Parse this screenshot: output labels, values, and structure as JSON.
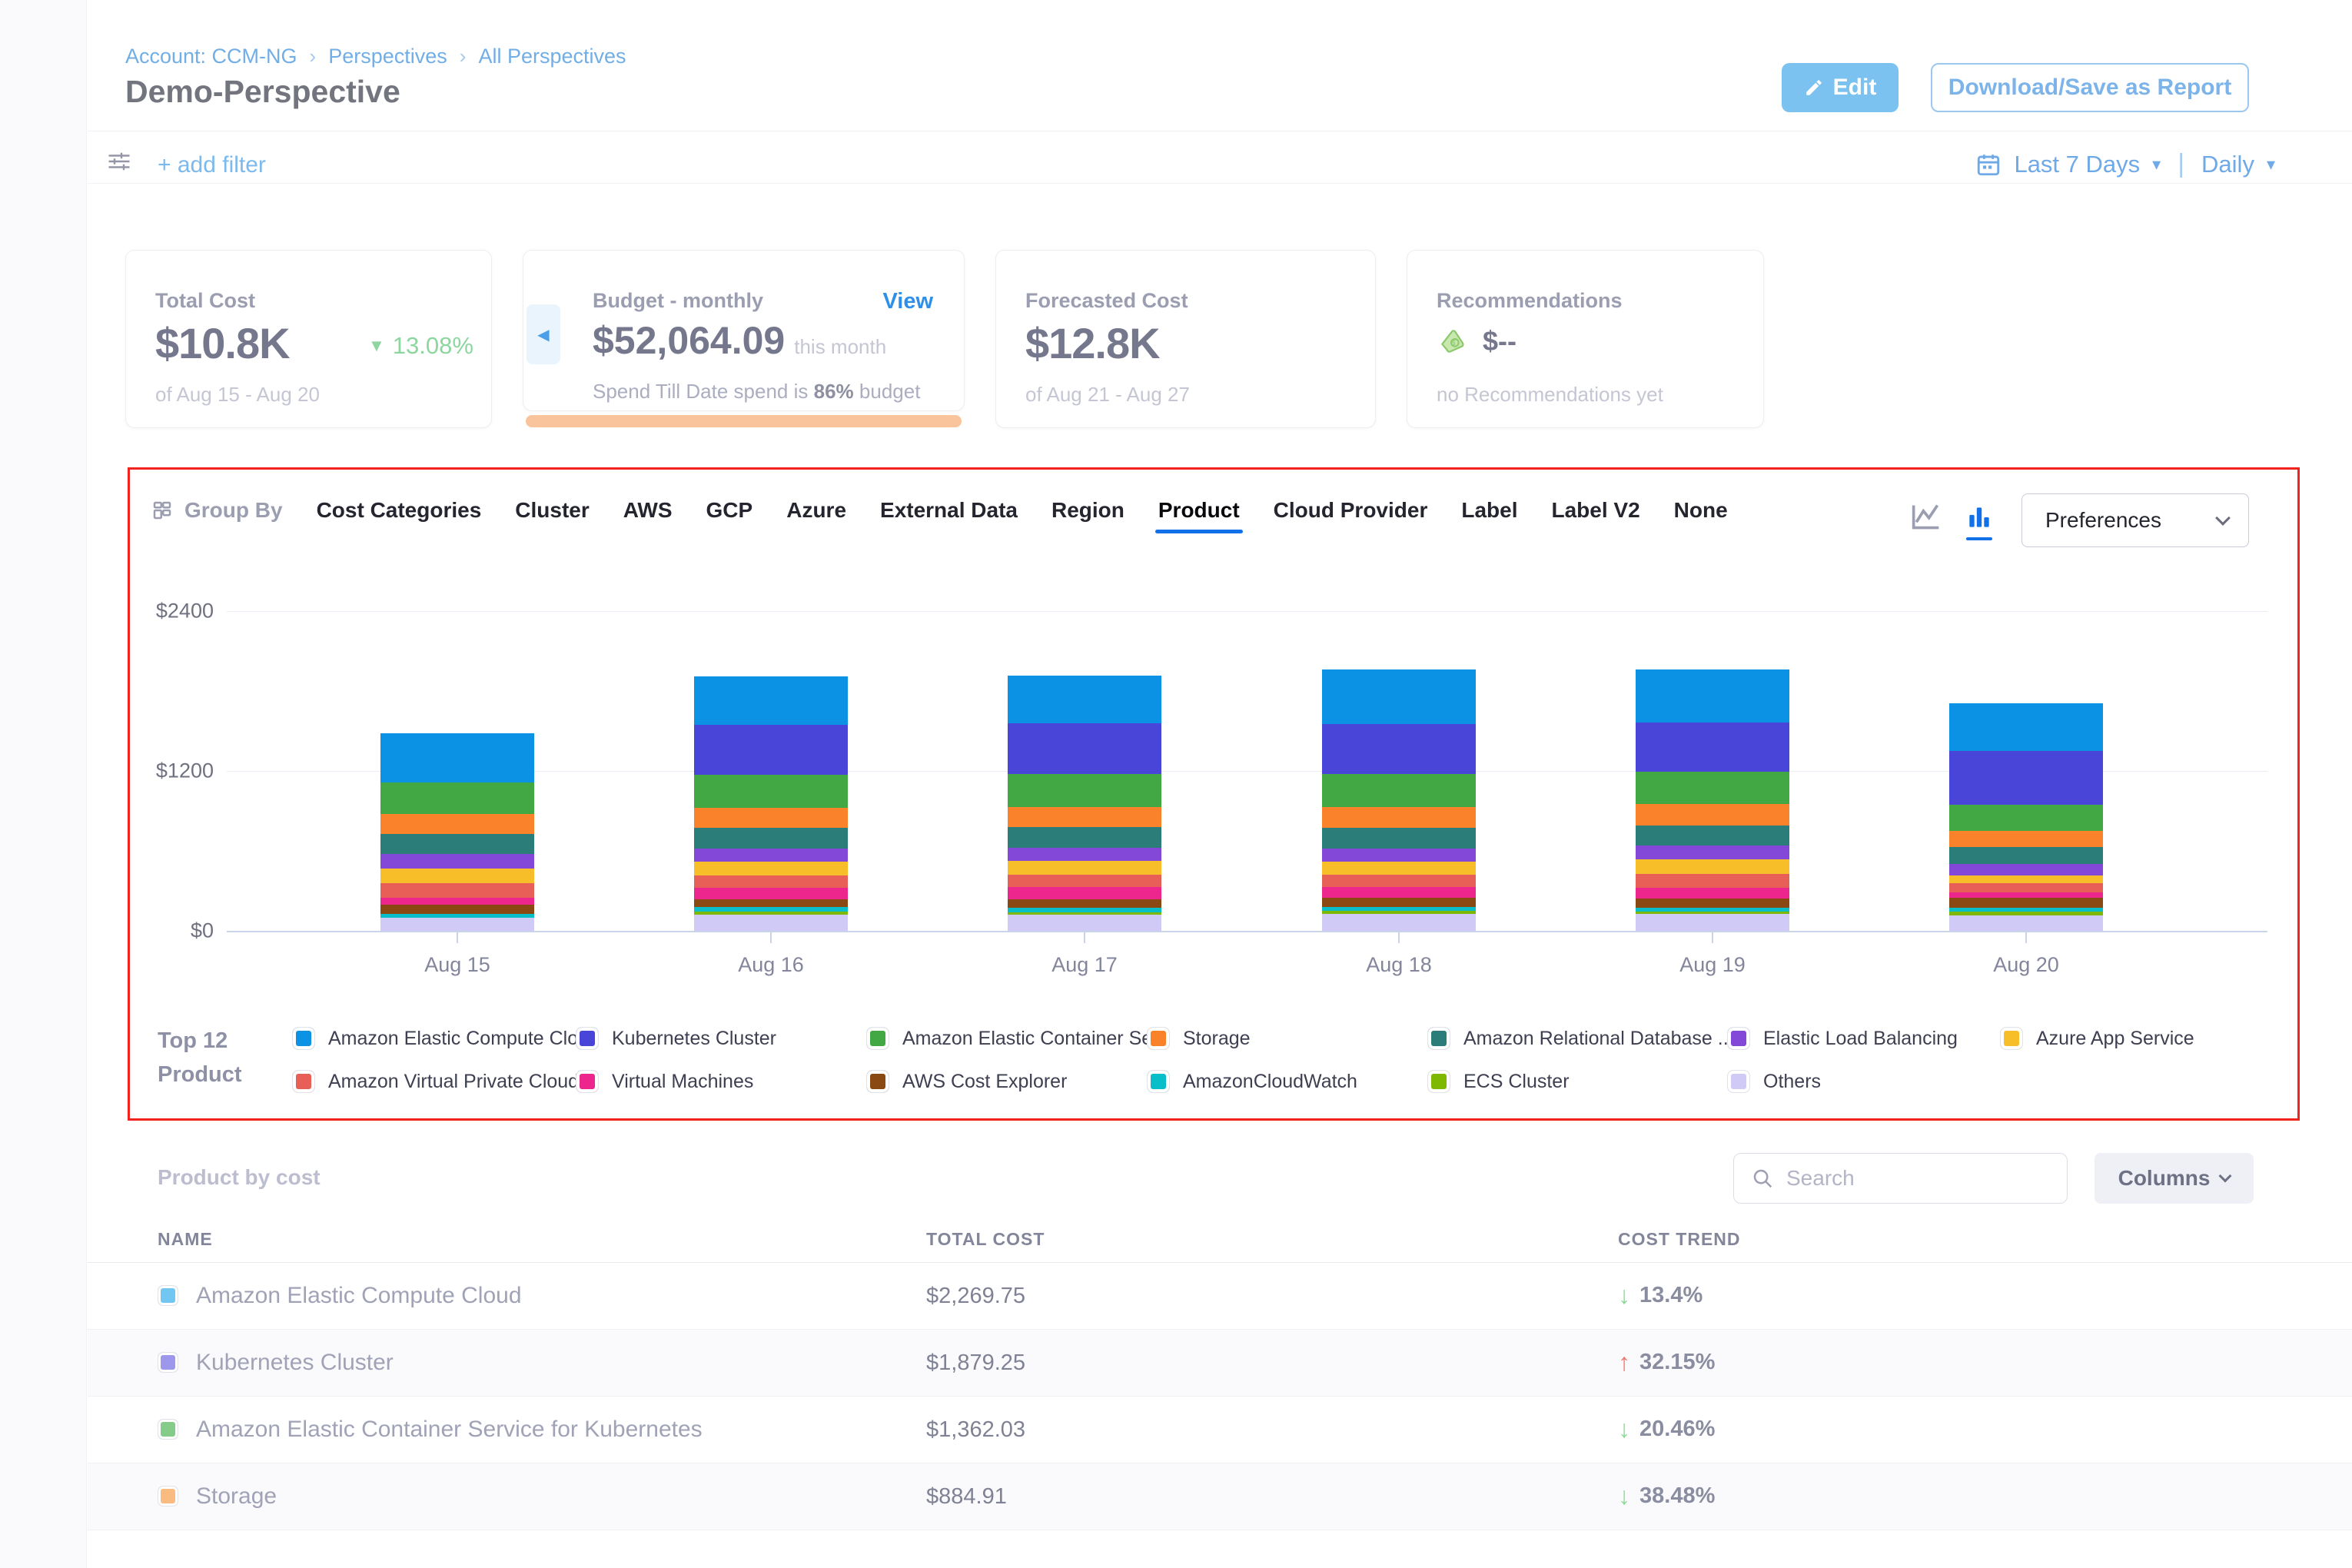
{
  "header": {
    "breadcrumb": {
      "account": "Account: CCM-NG",
      "perspectives": "Perspectives",
      "all_perspectives": "All Perspectives",
      "separator": "›"
    },
    "title": "Demo-Perspective",
    "edit_label": "Edit",
    "download_label": "Download/Save as Report"
  },
  "filter_bar": {
    "add_filter_label": "+ add filter",
    "date_range_label": "Last 7 Days",
    "granularity_label": "Daily"
  },
  "cards": {
    "total_cost": {
      "label": "Total Cost",
      "value": "$10.8K",
      "delta": "13.08%",
      "delta_direction": "down",
      "delta_color": "#8ed6a0",
      "period": "of Aug 15 - Aug 20"
    },
    "budget": {
      "label": "Budget - monthly",
      "view_label": "View",
      "value": "$52,064.09",
      "suffix": "this month",
      "spend_prefix": "Spend Till Date spend is",
      "spend_pct": "86%",
      "spend_suffix": "budget",
      "progress_color": "#f9c49b"
    },
    "forecasted": {
      "label": "Forecasted Cost",
      "value": "$12.8K",
      "period": "of Aug 21 - Aug 27"
    },
    "recommendations": {
      "label": "Recommendations",
      "value": "$--",
      "note": "no Recommendations yet",
      "icon_color": "#a8d98a"
    }
  },
  "group_by": {
    "label": "Group By",
    "tabs": [
      "Cost Categories",
      "Cluster",
      "AWS",
      "GCP",
      "Azure",
      "External Data",
      "Region",
      "Product",
      "Cloud Provider",
      "Label",
      "Label V2",
      "None"
    ],
    "active_tab": "Product",
    "active_underline_color": "#1271e8"
  },
  "preferences_label": "Preferences",
  "chart_data": {
    "type": "bar",
    "stacked": true,
    "x": [
      "Aug 15",
      "Aug 16",
      "Aug 17",
      "Aug 18",
      "Aug 19",
      "Aug 20"
    ],
    "ylim": [
      0,
      2400
    ],
    "ytick_labels": [
      "$2400",
      "$1200",
      "$0"
    ],
    "grid": "horizontal",
    "legend_position": "bottom",
    "series_bottom_to_top": [
      {
        "name": "Others",
        "color": "#cfcaf6",
        "values": [
          100,
          120,
          120,
          126,
          125,
          115
        ]
      },
      {
        "name": "ECS Cluster",
        "color": "#7eb802",
        "values": [
          0,
          23,
          20,
          23,
          20,
          29
        ]
      },
      {
        "name": "AmazonCloudWatch",
        "color": "#08bec8",
        "values": [
          25,
          34,
          35,
          29,
          30,
          29
        ]
      },
      {
        "name": "AWS Cost Explorer",
        "color": "#8a4912",
        "values": [
          70,
          57,
          60,
          69,
          65,
          77
        ]
      },
      {
        "name": "Virtual Machines",
        "color": "#ec268c",
        "values": [
          55,
          92,
          95,
          80,
          85,
          40
        ]
      },
      {
        "name": "Amazon Virtual Private Cloud",
        "color": "#e85f57",
        "values": [
          110,
          92,
          90,
          92,
          105,
          67
        ]
      },
      {
        "name": "Azure App Service",
        "color": "#f8be29",
        "values": [
          105,
          103,
          105,
          103,
          105,
          57
        ]
      },
      {
        "name": "Elastic Load Balancing",
        "color": "#8348d8",
        "values": [
          110,
          98,
          100,
          98,
          105,
          86
        ]
      },
      {
        "name": "Amazon Relational Database ...",
        "color": "#2a7d78",
        "values": [
          150,
          155,
          155,
          155,
          150,
          132
        ]
      },
      {
        "name": "Storage",
        "color": "#f9822b",
        "values": [
          155,
          149,
          150,
          155,
          160,
          121
        ]
      },
      {
        "name": "Amazon Elastic Container Se...",
        "color": "#41a844",
        "values": [
          235,
          247,
          245,
          247,
          245,
          195
        ]
      },
      {
        "name": "Kubernetes Cluster",
        "color": "#4945d9",
        "values": [
          0,
          379,
          385,
          373,
          370,
          402
        ]
      },
      {
        "name": "Amazon Elastic Compute Clo...",
        "color": "#0b92e4",
        "values": [
          370,
          362,
          355,
          413,
          395,
          356
        ]
      }
    ]
  },
  "legend": {
    "title_line1": "Top 12",
    "title_line2": "Product",
    "items": [
      {
        "label": "Amazon Elastic Compute Clo...",
        "color": "#0b92e4"
      },
      {
        "label": "Kubernetes Cluster",
        "color": "#4945d9"
      },
      {
        "label": "Amazon Elastic Container Se...",
        "color": "#41a844"
      },
      {
        "label": "Storage",
        "color": "#f9822b"
      },
      {
        "label": "Amazon Relational Database ...",
        "color": "#2a7d78"
      },
      {
        "label": "Elastic Load Balancing",
        "color": "#8348d8"
      },
      {
        "label": "Azure App Service",
        "color": "#f8be29"
      },
      {
        "label": "Amazon Virtual Private Cloud",
        "color": "#e85f57"
      },
      {
        "label": "Virtual Machines",
        "color": "#ec268c"
      },
      {
        "label": "AWS Cost Explorer",
        "color": "#8a4912"
      },
      {
        "label": "AmazonCloudWatch",
        "color": "#08bec8"
      },
      {
        "label": "ECS Cluster",
        "color": "#7eb802"
      },
      {
        "label": "Others",
        "color": "#cfcaf6"
      }
    ]
  },
  "table": {
    "section_title": "Product by cost",
    "search_placeholder": "Search",
    "columns_label": "Columns",
    "headers": [
      "NAME",
      "TOTAL COST",
      "COST TREND"
    ],
    "trend_up_color": "#f2756b",
    "trend_down_color": "#8adb96",
    "rows": [
      {
        "name": "Amazon Elastic Compute Cloud",
        "chip_color": "#72c6f2",
        "total_cost": "$2,269.75",
        "trend": "13.4%",
        "trend_direction": "down"
      },
      {
        "name": "Kubernetes Cluster",
        "chip_color": "#9d98ec",
        "total_cost": "$1,879.25",
        "trend": "32.15%",
        "trend_direction": "up"
      },
      {
        "name": "Amazon Elastic Container Service for Kubernetes",
        "chip_color": "#85cb8a",
        "total_cost": "$1,362.03",
        "trend": "20.46%",
        "trend_direction": "down"
      },
      {
        "name": "Storage",
        "chip_color": "#f9bb80",
        "total_cost": "$884.91",
        "trend": "38.48%",
        "trend_direction": "down"
      }
    ]
  }
}
